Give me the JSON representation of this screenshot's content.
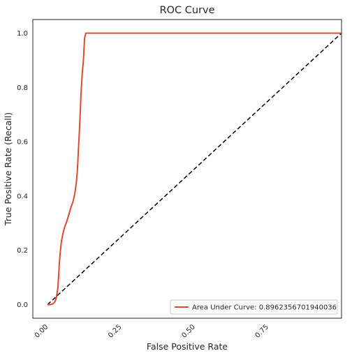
{
  "chart_data": {
    "type": "line",
    "title": "ROC Curve",
    "xlabel": "False Positive Rate",
    "ylabel": "True Positive Rate (Recall)",
    "xlim": [
      -0.05,
      1.0
    ],
    "ylim": [
      -0.05,
      1.05
    ],
    "xticks": [
      0.0,
      0.25,
      0.5,
      0.75
    ],
    "xtick_labels": [
      "0.00",
      "0.25",
      "0.50",
      "0.75"
    ],
    "xtick_rotation": 45,
    "yticks": [
      0.0,
      0.2,
      0.4,
      0.6,
      0.8,
      1.0
    ],
    "ytick_labels": [
      "0.0",
      "0.2",
      "0.4",
      "0.6",
      "0.8",
      "1.0"
    ],
    "grid": false,
    "legend_position": "lower-right",
    "series": [
      {
        "name": "Area Under Curve: 0.8962356701940036",
        "color": "#dd4a2c",
        "style": "solid",
        "x": [
          0.0,
          0.01,
          0.018,
          0.025,
          0.03,
          0.035,
          0.038,
          0.04,
          0.043,
          0.047,
          0.052,
          0.058,
          0.065,
          0.072,
          0.08,
          0.087,
          0.093,
          0.098,
          0.102,
          0.105,
          0.108,
          0.111,
          0.114,
          0.118,
          0.122,
          0.124,
          0.126,
          0.13,
          1.0
        ],
        "y": [
          0.0,
          0.0,
          0.003,
          0.01,
          0.025,
          0.06,
          0.11,
          0.15,
          0.19,
          0.23,
          0.26,
          0.285,
          0.305,
          0.33,
          0.36,
          0.38,
          0.41,
          0.45,
          0.5,
          0.57,
          0.63,
          0.7,
          0.78,
          0.85,
          0.9,
          0.94,
          0.98,
          1.0,
          1.0
        ]
      },
      {
        "name": "",
        "color": "#000000",
        "style": "dashed",
        "x": [
          0.0,
          1.0
        ],
        "y": [
          0.0,
          1.0
        ]
      }
    ]
  }
}
